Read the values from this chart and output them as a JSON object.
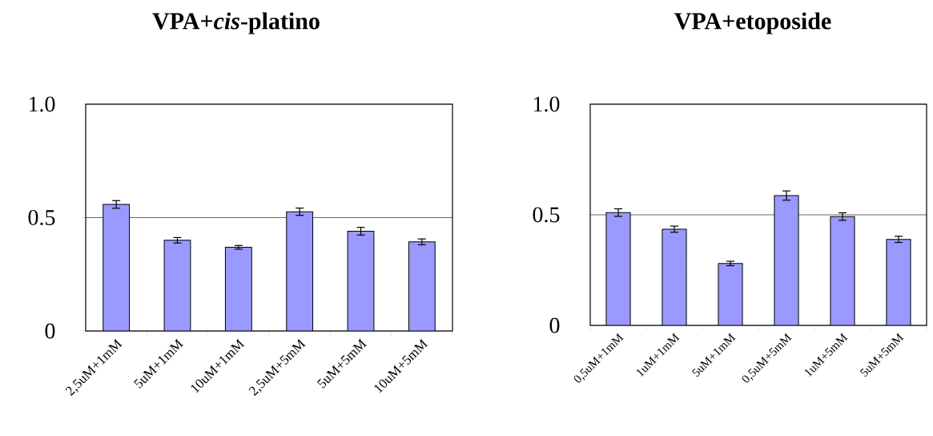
{
  "chart_data": [
    {
      "type": "bar",
      "title": "VPA+*cis*-platino",
      "categories": [
        "2,5uM+1mM",
        "5uM+1mM",
        "10uM+1mM",
        "2,5uM+5mM",
        "5uM+5mM",
        "10uM+5mM"
      ],
      "values": [
        0.558,
        0.4,
        0.369,
        0.526,
        0.44,
        0.393
      ],
      "errors": [
        0.017,
        0.012,
        0.008,
        0.016,
        0.017,
        0.013
      ],
      "color": "#9999ff",
      "ylim": [
        0,
        1
      ],
      "yticks": [
        0,
        0.5,
        {
          "value": 1,
          "label": "1.0"
        }
      ],
      "grid": "y"
    },
    {
      "type": "bar",
      "title": "VPA+etoposide",
      "categories": [
        "0,5uM+1mM",
        "1uM+1mM",
        "5uM+1mM",
        "0,5uM+5mM",
        "1uM+5mM",
        "5uM+5mM"
      ],
      "values": [
        0.51,
        0.435,
        0.28,
        0.587,
        0.492,
        0.389
      ],
      "errors": [
        0.017,
        0.014,
        0.01,
        0.021,
        0.017,
        0.014
      ],
      "color": "#9999ff",
      "ylim": [
        0,
        1
      ],
      "yticks": [
        0,
        0.5,
        {
          "value": 1,
          "label": "1.0"
        }
      ],
      "grid": "y"
    }
  ]
}
